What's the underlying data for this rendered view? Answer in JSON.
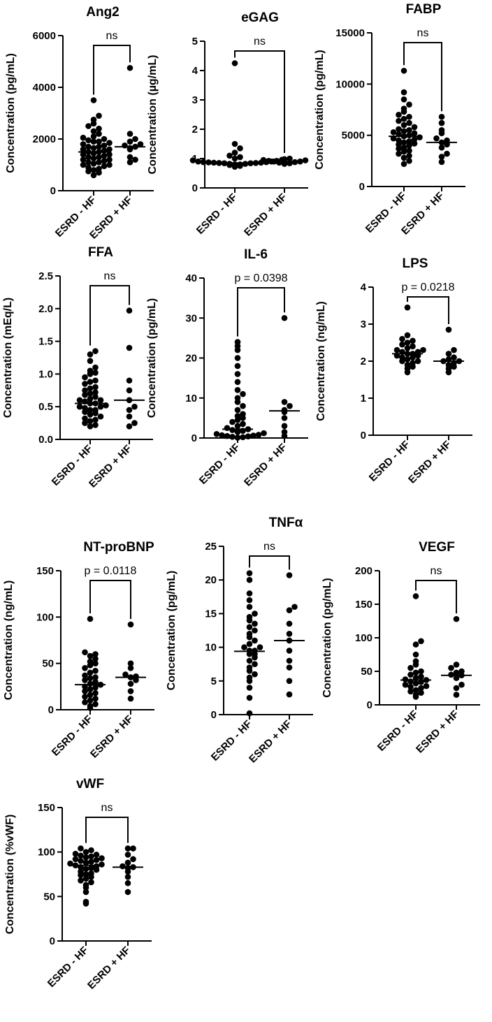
{
  "chart_data": [
    {
      "type": "scatter",
      "title": "Ang2",
      "ylabel": "Concentration (pg/mL)",
      "categories": [
        "ESRD - HF",
        "ESRD + HF"
      ],
      "yticks": [
        0,
        2000,
        4000,
        6000
      ],
      "ylim": [
        0,
        6000
      ],
      "significance": "ns",
      "medians": [
        1500,
        1700
      ],
      "series": [
        {
          "name": "ESRD - HF",
          "values": [
            600,
            700,
            750,
            800,
            850,
            900,
            950,
            1000,
            1000,
            1050,
            1100,
            1100,
            1150,
            1200,
            1200,
            1250,
            1300,
            1300,
            1350,
            1400,
            1400,
            1450,
            1500,
            1500,
            1550,
            1600,
            1600,
            1650,
            1700,
            1700,
            1750,
            1800,
            1850,
            1900,
            1900,
            1950,
            2000,
            2050,
            2100,
            2200,
            2300,
            2400,
            2500,
            2600,
            2750,
            2900,
            3500
          ]
        },
        {
          "name": "ESRD + HF",
          "values": [
            1100,
            1200,
            1300,
            1600,
            1650,
            1700,
            1750,
            1800,
            1900,
            2000,
            2200,
            4750
          ]
        }
      ]
    },
    {
      "type": "scatter",
      "title": "eGAG",
      "ylabel": "Concentration (µg/mL)",
      "categories": [
        "ESRD - HF",
        "ESRD + HF"
      ],
      "yticks": [
        0,
        1,
        2,
        3,
        4,
        5
      ],
      "ylim": [
        0,
        5
      ],
      "significance": "ns",
      "medians": [
        0.85,
        0.9
      ],
      "series": [
        {
          "name": "ESRD - HF",
          "values": [
            0.72,
            0.75,
            0.78,
            0.8,
            0.8,
            0.82,
            0.82,
            0.84,
            0.84,
            0.85,
            0.85,
            0.86,
            0.86,
            0.87,
            0.88,
            0.88,
            0.9,
            0.9,
            0.92,
            0.94,
            0.96,
            1.0,
            1.05,
            1.1,
            1.2,
            1.35,
            1.5,
            4.25
          ]
        },
        {
          "name": "ESRD + HF",
          "values": [
            0.82,
            0.84,
            0.86,
            0.88,
            0.9,
            0.9,
            0.92,
            0.94,
            0.95,
            0.98,
            1.0
          ]
        }
      ]
    },
    {
      "type": "scatter",
      "title": "FABP",
      "ylabel": "Concentration (pg/mL)",
      "categories": [
        "ESRD - HF",
        "ESRD + HF"
      ],
      "yticks": [
        0,
        5000,
        10000,
        15000
      ],
      "ylim": [
        0,
        15000
      ],
      "significance": "ns",
      "medians": [
        4900,
        4300
      ],
      "series": [
        {
          "name": "ESRD - HF",
          "values": [
            2200,
            2500,
            2800,
            3000,
            3200,
            3400,
            3500,
            3700,
            3800,
            4000,
            4100,
            4200,
            4300,
            4400,
            4500,
            4600,
            4700,
            4800,
            4900,
            5000,
            5100,
            5200,
            5300,
            5400,
            5500,
            5600,
            5800,
            6000,
            6200,
            6400,
            6600,
            6800,
            7000,
            7300,
            7600,
            8000,
            8500,
            9200,
            11300
          ]
        },
        {
          "name": "ESRD + HF",
          "values": [
            2400,
            2900,
            3200,
            3800,
            4100,
            4300,
            4500,
            4700,
            5200,
            5500,
            6200,
            6800
          ]
        }
      ]
    },
    {
      "type": "scatter",
      "title": "FFA",
      "ylabel": "Concentration (mEq/L)",
      "categories": [
        "ESRD - HF",
        "ESRD + HF"
      ],
      "yticks": [
        "0.0",
        "0.5",
        "1.0",
        "1.5",
        "2.0",
        "2.5"
      ],
      "ylim": [
        0,
        2.5
      ],
      "significance": "ns",
      "medians": [
        0.55,
        0.6
      ],
      "series": [
        {
          "name": "ESRD - HF",
          "values": [
            0.2,
            0.22,
            0.25,
            0.28,
            0.3,
            0.32,
            0.35,
            0.38,
            0.4,
            0.42,
            0.45,
            0.45,
            0.48,
            0.5,
            0.5,
            0.52,
            0.55,
            0.55,
            0.58,
            0.6,
            0.6,
            0.62,
            0.65,
            0.68,
            0.7,
            0.72,
            0.75,
            0.78,
            0.8,
            0.85,
            0.88,
            0.9,
            0.95,
            1.0,
            1.02,
            1.05,
            1.1,
            1.2,
            1.3,
            1.35
          ]
        },
        {
          "name": "ESRD + HF",
          "values": [
            0.2,
            0.25,
            0.35,
            0.45,
            0.5,
            0.6,
            0.75,
            0.9,
            1.4,
            1.97
          ]
        }
      ]
    },
    {
      "type": "scatter",
      "title": "IL-6",
      "ylabel": "Concentration (pg/mL)",
      "categories": [
        "ESRD - HF",
        "ESRD + HF"
      ],
      "yticks": [
        0,
        10,
        20,
        30,
        40
      ],
      "ylim": [
        0,
        40
      ],
      "significance": "p = 0.0398",
      "medians": [
        2.2,
        6.8
      ],
      "series": [
        {
          "name": "ESRD - HF",
          "values": [
            0.1,
            0.2,
            0.3,
            0.4,
            0.5,
            0.6,
            0.7,
            0.8,
            1.0,
            1.2,
            1.5,
            1.8,
            2.0,
            2.2,
            2.5,
            3.0,
            3.5,
            4.0,
            4.5,
            5.0,
            5.5,
            6.0,
            7.0,
            8.0,
            9.0,
            10.0,
            11.0,
            12.0,
            14.0,
            16.0,
            18.0,
            20.0,
            22.0,
            23.0,
            24.0
          ]
        },
        {
          "name": "ESRD + HF",
          "values": [
            0.5,
            1.5,
            3.0,
            5.0,
            6.5,
            7.0,
            8.0,
            9.0,
            30.0
          ]
        }
      ]
    },
    {
      "type": "scatter",
      "title": "LPS",
      "ylabel": "Concentration (ng/mL)",
      "categories": [
        "ESRD - HF",
        "ESRD + HF"
      ],
      "yticks": [
        0,
        1,
        2,
        3,
        4
      ],
      "ylim": [
        0,
        4
      ],
      "significance": "p = 0.0218",
      "medians": [
        2.2,
        2.0
      ],
      "series": [
        {
          "name": "ESRD - HF",
          "values": [
            1.7,
            1.8,
            1.85,
            1.9,
            1.95,
            2.0,
            2.0,
            2.05,
            2.1,
            2.1,
            2.15,
            2.15,
            2.2,
            2.2,
            2.25,
            2.25,
            2.3,
            2.3,
            2.35,
            2.4,
            2.45,
            2.5,
            2.55,
            2.6,
            2.7,
            3.45
          ]
        },
        {
          "name": "ESRD + HF",
          "values": [
            1.7,
            1.8,
            1.85,
            1.9,
            1.95,
            2.0,
            2.0,
            2.05,
            2.1,
            2.2,
            2.3,
            2.85
          ]
        }
      ]
    },
    {
      "type": "scatter",
      "title": "NT-proBNP",
      "ylabel": "Concentration (ng/mL)",
      "categories": [
        "ESRD - HF",
        "ESRD + HF"
      ],
      "yticks": [
        0,
        50,
        100,
        150
      ],
      "ylim": [
        0,
        150
      ],
      "significance": "p = 0.0118",
      "medians": [
        27,
        35
      ],
      "series": [
        {
          "name": "ESRD - HF",
          "values": [
            2,
            4,
            6,
            8,
            10,
            12,
            14,
            16,
            18,
            20,
            22,
            24,
            25,
            27,
            28,
            30,
            32,
            34,
            35,
            37,
            40,
            42,
            45,
            48,
            50,
            52,
            55,
            58,
            60,
            62,
            98
          ]
        },
        {
          "name": "ESRD + HF",
          "values": [
            12,
            20,
            28,
            32,
            35,
            36,
            38,
            45,
            50,
            92
          ]
        }
      ]
    },
    {
      "type": "scatter",
      "title": "TNFα",
      "ylabel": "Concentration (pg/mL)",
      "categories": [
        "ESRD - HF",
        "ESRD + HF"
      ],
      "yticks": [
        0,
        5,
        10,
        15,
        20,
        25
      ],
      "ylim": [
        0,
        25
      ],
      "significance": "ns",
      "medians": [
        9.4,
        11.0
      ],
      "series": [
        {
          "name": "ESRD - HF",
          "values": [
            0.2,
            2.5,
            4.0,
            5.0,
            5.5,
            6.0,
            6.5,
            7.0,
            7.5,
            8.0,
            8.5,
            9.0,
            9.0,
            9.5,
            9.5,
            10.0,
            10.0,
            10.5,
            11.0,
            11.5,
            12.0,
            12.5,
            13.0,
            13.5,
            14.0,
            14.5,
            15.0,
            16.0,
            17.0,
            18.0,
            20.0,
            21.0
          ]
        },
        {
          "name": "ESRD + HF",
          "values": [
            3.0,
            5.0,
            7.0,
            8.0,
            9.5,
            11.0,
            12.0,
            13.5,
            15.5,
            16.0,
            20.7
          ]
        }
      ]
    },
    {
      "type": "scatter",
      "title": "VEGF",
      "ylabel": "Concentration (pg/mL)",
      "categories": [
        "ESRD - HF",
        "ESRD + HF"
      ],
      "yticks": [
        0,
        50,
        100,
        150,
        200
      ],
      "ylim": [
        0,
        200
      ],
      "significance": "ns",
      "medians": [
        37,
        44
      ],
      "series": [
        {
          "name": "ESRD - HF",
          "values": [
            12,
            15,
            18,
            20,
            22,
            25,
            27,
            28,
            30,
            32,
            34,
            35,
            37,
            38,
            40,
            42,
            45,
            48,
            50,
            55,
            60,
            65,
            75,
            90,
            95,
            162
          ]
        },
        {
          "name": "ESRD + HF",
          "values": [
            15,
            25,
            30,
            40,
            44,
            45,
            48,
            50,
            55,
            60,
            128
          ]
        }
      ]
    },
    {
      "type": "scatter",
      "title": "vWF",
      "ylabel": "Concentration (%vWF)",
      "categories": [
        "ESRD - HF",
        "ESRD + HF"
      ],
      "yticks": [
        0,
        50,
        100,
        150
      ],
      "ylim": [
        0,
        150
      ],
      "significance": "ns",
      "medians": [
        85,
        83
      ],
      "series": [
        {
          "name": "ESRD - HF",
          "values": [
            42,
            44,
            55,
            60,
            63,
            66,
            68,
            70,
            72,
            74,
            75,
            76,
            78,
            80,
            81,
            82,
            83,
            84,
            85,
            86,
            87,
            88,
            89,
            90,
            91,
            92,
            93,
            94,
            95,
            96,
            97,
            98,
            100,
            102,
            104
          ]
        },
        {
          "name": "ESRD + HF",
          "values": [
            55,
            65,
            72,
            78,
            82,
            83,
            84,
            88,
            92,
            97,
            104,
            104
          ]
        }
      ]
    }
  ]
}
